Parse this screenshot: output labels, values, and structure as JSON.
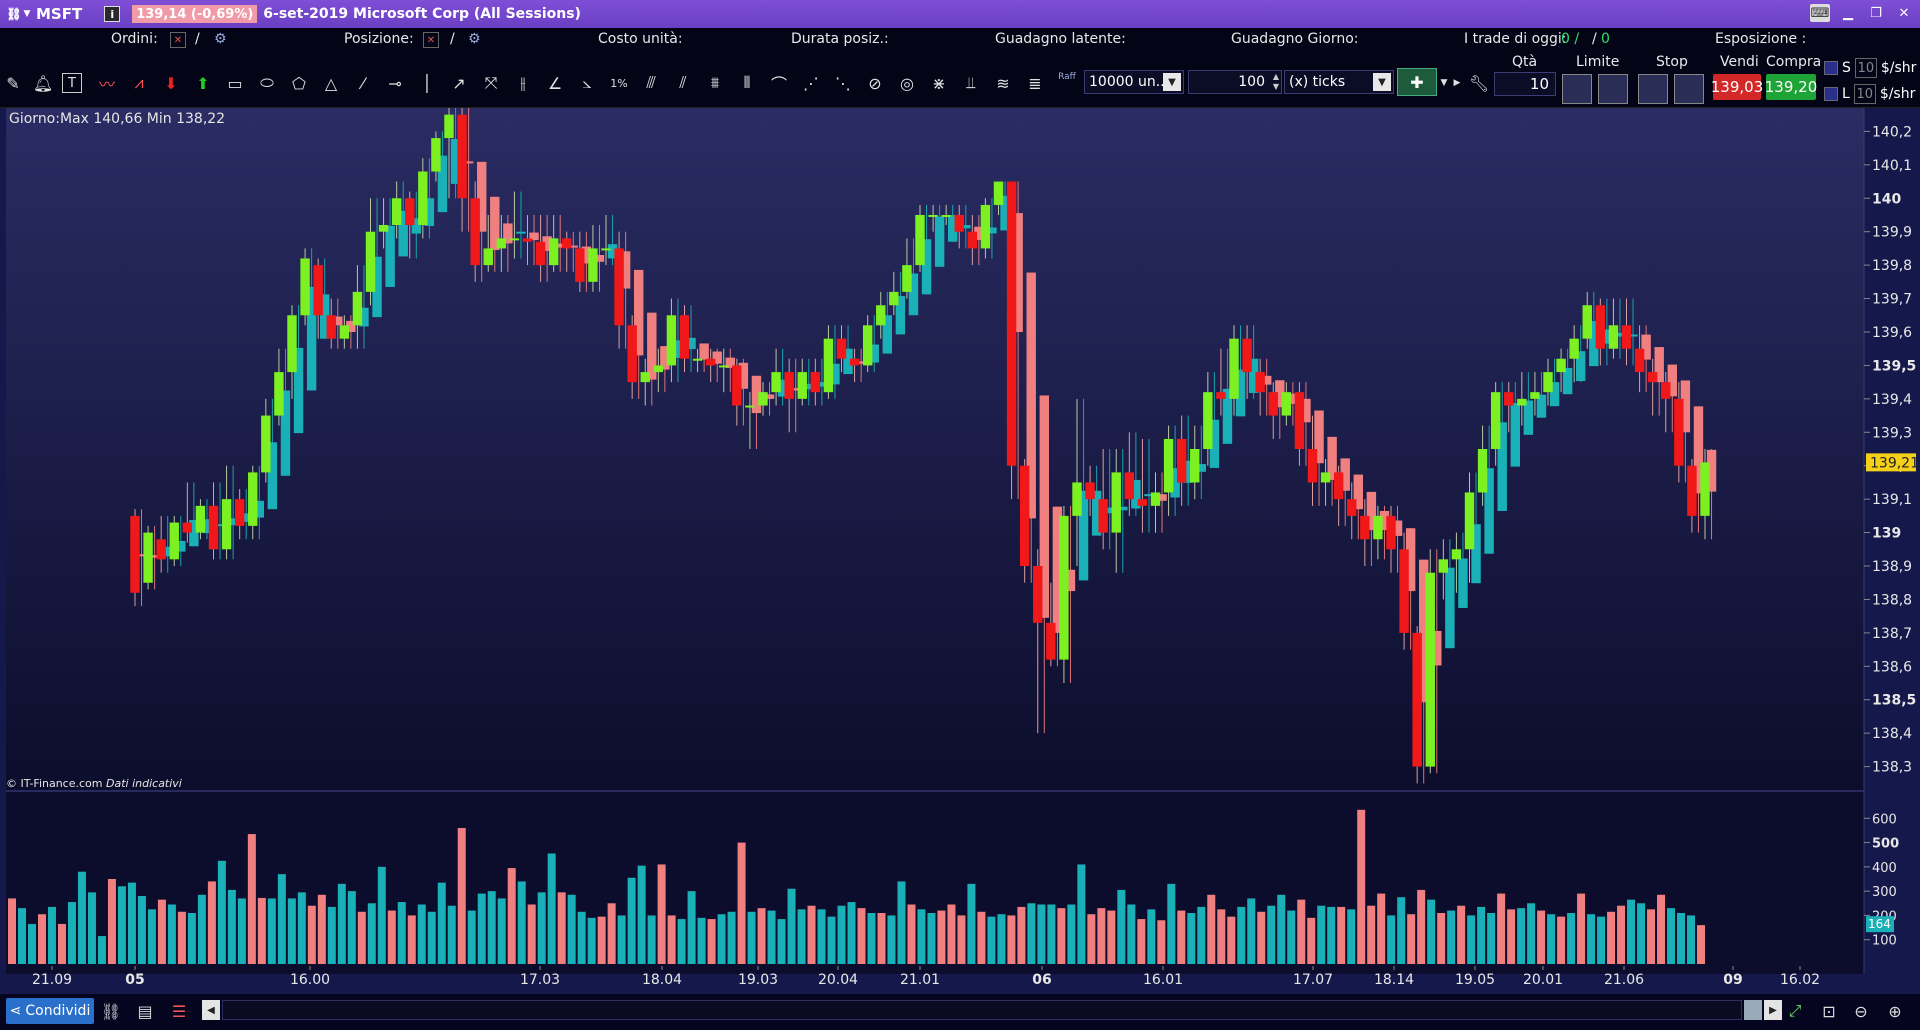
{
  "titlebar": {
    "symbol": "MSFT",
    "info": "i",
    "price_badge": "139,14 (-0,69%)",
    "title": "6-set-2019 Microsoft Corp (All Sessions)"
  },
  "status": {
    "orders_label": "Ordini:",
    "orders_sep": "/",
    "position_label": "Posizione:",
    "position_sep": "/",
    "unit_cost_label": "Costo unità:",
    "duration_label": "Durata posiz.:",
    "unrealized_label": "Guadagno latente:",
    "day_gain_label": "Guadagno Giorno:",
    "trades_label": "I trade di oggi:",
    "trades_a": "0 /",
    "trades_sep": "/",
    "trades_b": "0",
    "exposure_label": "Esposizione :"
  },
  "toolbar": {
    "qty_combo": "10000 un...",
    "ticks_value": "100",
    "ticks_unit": "(x) ticks",
    "raff_label": "Raff",
    "pct_label": "1%"
  },
  "trade": {
    "qty_label": "Qtà",
    "qty_value": "10",
    "limit_label": "Limite",
    "stop_label": "Stop",
    "sell_label": "Vendi",
    "buy_label": "Compra",
    "sell_price": "139,03",
    "buy_price": "139,20",
    "s_label": "S",
    "l_label": "L",
    "s_qty": "10",
    "l_qty": "10",
    "unit1": "$/shr",
    "unit2": "$/shr"
  },
  "chart": {
    "info": "Giorno:Max 140,66 Min 138,22",
    "copyright": "© IT-Finance.com",
    "copyright_note": "Dati indicativi",
    "last_price": "139,21",
    "colors": {
      "bull": "#7cf020",
      "bear": "#f01818",
      "ha_bull": "#1ab0b8",
      "ha_bear": "#f08080",
      "bg_top": "#2a2c63",
      "bg_bottom": "#0c0d2c"
    }
  },
  "chart_data": {
    "type": "candlestick",
    "price_axis": [
      "140,2",
      "140,1",
      "140",
      "139,9",
      "139,8",
      "139,7",
      "139,6",
      "139,5",
      "139,4",
      "139,3",
      "139,2",
      "139,1",
      "139",
      "138,9",
      "138,8",
      "138,7",
      "138,6",
      "138,5",
      "138,4",
      "138,3"
    ],
    "price_axis_bold": [
      "140",
      "139,5",
      "139",
      "138,5"
    ],
    "ylim": [
      138.23,
      140.27
    ],
    "volume_axis": [
      "600",
      "500",
      "400",
      "300",
      "200",
      "100"
    ],
    "volume_axis_bold": [
      "500"
    ],
    "volume_badge": "164",
    "volume_ylim": [
      0,
      700
    ],
    "time_axis": [
      "21.09",
      "05",
      "16.00",
      "17.03",
      "18.04",
      "19.03",
      "20.04",
      "21.01",
      "06",
      "16.01",
      "17.07",
      "18.14",
      "19.05",
      "20.01",
      "21.06",
      "09",
      "16.02"
    ],
    "time_axis_bold": [
      "05",
      "06",
      "09"
    ],
    "candles": [
      [
        139.05,
        138.82,
        138.78,
        139.07
      ],
      [
        138.85,
        139.0,
        138.83,
        139.02
      ],
      [
        138.98,
        138.92,
        138.88,
        139.05
      ],
      [
        138.92,
        139.03,
        138.9,
        139.05
      ],
      [
        139.03,
        139.0,
        138.97,
        139.15
      ],
      [
        139.0,
        139.08,
        138.98,
        139.1
      ],
      [
        139.08,
        138.95,
        138.92,
        139.15
      ],
      [
        138.95,
        139.1,
        138.92,
        139.2
      ],
      [
        139.1,
        139.02,
        138.98,
        139.13
      ],
      [
        139.02,
        139.18,
        138.98,
        139.2
      ],
      [
        139.18,
        139.35,
        139.15,
        139.4
      ],
      [
        139.35,
        139.48,
        139.32,
        139.55
      ],
      [
        139.48,
        139.65,
        139.4,
        139.68
      ],
      [
        139.65,
        139.82,
        139.62,
        139.85
      ],
      [
        139.8,
        139.65,
        139.58,
        139.82
      ],
      [
        139.65,
        139.58,
        139.55,
        139.7
      ],
      [
        139.58,
        139.62,
        139.55,
        139.65
      ],
      [
        139.62,
        139.72,
        139.55,
        139.8
      ],
      [
        139.72,
        139.9,
        139.68,
        140.0
      ],
      [
        139.9,
        139.92,
        139.85,
        140.0
      ],
      [
        139.92,
        140.0,
        139.88,
        140.05
      ],
      [
        140.0,
        139.92,
        139.82,
        140.02
      ],
      [
        139.92,
        140.08,
        139.88,
        140.12
      ],
      [
        140.08,
        140.18,
        140.05,
        140.2
      ],
      [
        140.18,
        140.25,
        140.0,
        140.28
      ],
      [
        140.25,
        140.0,
        139.9,
        140.28
      ],
      [
        140.0,
        139.8,
        139.75,
        140.05
      ],
      [
        139.8,
        139.85,
        139.78,
        139.95
      ],
      [
        139.85,
        139.88,
        139.78,
        139.95
      ],
      [
        139.88,
        139.88,
        139.82,
        140.02
      ],
      [
        139.88,
        139.87,
        139.8,
        139.95
      ],
      [
        139.87,
        139.8,
        139.75,
        139.95
      ],
      [
        139.8,
        139.88,
        139.78,
        139.95
      ],
      [
        139.88,
        139.85,
        139.78,
        139.9
      ],
      [
        139.85,
        139.75,
        139.72,
        139.9
      ],
      [
        139.75,
        139.85,
        139.72,
        139.92
      ],
      [
        139.85,
        139.85,
        139.8,
        139.95
      ],
      [
        139.85,
        139.62,
        139.55,
        139.9
      ],
      [
        139.62,
        139.45,
        139.4,
        139.65
      ],
      [
        139.45,
        139.48,
        139.38,
        139.52
      ],
      [
        139.48,
        139.5,
        139.42,
        139.55
      ],
      [
        139.5,
        139.65,
        139.45,
        139.7
      ],
      [
        139.65,
        139.52,
        139.48,
        139.68
      ],
      [
        139.52,
        139.52,
        139.48,
        139.55
      ],
      [
        139.52,
        139.5,
        139.45,
        139.55
      ],
      [
        139.5,
        139.5,
        139.42,
        139.55
      ],
      [
        139.5,
        139.38,
        139.32,
        139.52
      ],
      [
        139.38,
        139.38,
        139.25,
        139.42
      ],
      [
        139.38,
        139.42,
        139.35,
        139.45
      ],
      [
        139.42,
        139.48,
        139.38,
        139.55
      ],
      [
        139.48,
        139.4,
        139.3,
        139.52
      ],
      [
        139.4,
        139.48,
        139.38,
        139.52
      ],
      [
        139.48,
        139.42,
        139.38,
        139.52
      ],
      [
        139.42,
        139.58,
        139.4,
        139.62
      ],
      [
        139.58,
        139.52,
        139.48,
        139.62
      ],
      [
        139.52,
        139.5,
        139.45,
        139.55
      ],
      [
        139.5,
        139.62,
        139.48,
        139.65
      ],
      [
        139.62,
        139.68,
        139.58,
        139.72
      ],
      [
        139.68,
        139.72,
        139.65,
        139.78
      ],
      [
        139.72,
        139.8,
        139.7,
        139.88
      ],
      [
        139.8,
        139.95,
        139.78,
        139.98
      ],
      [
        139.95,
        139.95,
        139.9,
        139.98
      ],
      [
        139.95,
        139.95,
        139.92,
        139.98
      ],
      [
        139.95,
        139.9,
        139.85,
        139.98
      ],
      [
        139.9,
        139.85,
        139.8,
        139.95
      ],
      [
        139.85,
        139.98,
        139.82,
        140.0
      ],
      [
        139.98,
        140.05,
        139.95,
        140.05
      ],
      [
        140.05,
        139.2,
        139.1,
        140.05
      ],
      [
        139.2,
        138.9,
        138.85,
        139.22
      ],
      [
        138.9,
        138.73,
        138.4,
        138.95
      ],
      [
        138.73,
        138.62,
        138.6,
        138.85
      ],
      [
        138.62,
        139.05,
        138.55,
        139.08
      ],
      [
        139.05,
        139.15,
        138.9,
        139.4
      ],
      [
        139.15,
        139.1,
        139.05,
        139.2
      ],
      [
        139.1,
        139.0,
        138.95,
        139.25
      ],
      [
        139.0,
        139.18,
        138.88,
        139.25
      ],
      [
        139.18,
        139.1,
        139.05,
        139.3
      ],
      [
        139.1,
        139.08,
        139.0,
        139.28
      ],
      [
        139.08,
        139.12,
        139.0,
        139.18
      ],
      [
        139.12,
        139.28,
        139.05,
        139.32
      ],
      [
        139.28,
        139.15,
        139.08,
        139.35
      ],
      [
        139.15,
        139.25,
        139.1,
        139.32
      ],
      [
        139.25,
        139.42,
        139.2,
        139.48
      ],
      [
        139.42,
        139.4,
        139.35,
        139.55
      ],
      [
        139.4,
        139.58,
        139.35,
        139.62
      ],
      [
        139.58,
        139.48,
        139.4,
        139.62
      ],
      [
        139.48,
        139.42,
        139.35,
        139.52
      ],
      [
        139.42,
        139.35,
        139.28,
        139.45
      ],
      [
        139.35,
        139.42,
        139.32,
        139.45
      ],
      [
        139.42,
        139.25,
        139.2,
        139.45
      ],
      [
        139.25,
        139.15,
        139.08,
        139.35
      ],
      [
        139.15,
        139.18,
        139.08,
        139.22
      ],
      [
        139.18,
        139.1,
        139.02,
        139.2
      ],
      [
        139.1,
        139.05,
        138.98,
        139.15
      ],
      [
        139.05,
        138.98,
        138.9,
        139.1
      ],
      [
        138.98,
        139.05,
        138.92,
        139.08
      ],
      [
        139.05,
        138.95,
        138.88,
        139.08
      ],
      [
        138.95,
        138.7,
        138.65,
        139.0
      ],
      [
        138.7,
        138.3,
        138.25,
        138.72
      ],
      [
        138.3,
        138.88,
        138.28,
        138.95
      ],
      [
        138.88,
        138.92,
        138.8,
        138.98
      ],
      [
        138.92,
        138.95,
        138.82,
        139.0
      ],
      [
        138.95,
        139.12,
        138.85,
        139.18
      ],
      [
        139.12,
        139.25,
        139.08,
        139.32
      ],
      [
        139.25,
        139.42,
        139.2,
        139.45
      ],
      [
        139.42,
        139.38,
        139.3,
        139.45
      ],
      [
        139.38,
        139.4,
        139.32,
        139.48
      ],
      [
        139.4,
        139.42,
        139.35,
        139.48
      ],
      [
        139.42,
        139.48,
        139.38,
        139.52
      ],
      [
        139.48,
        139.52,
        139.42,
        139.55
      ],
      [
        139.52,
        139.58,
        139.45,
        139.62
      ],
      [
        139.58,
        139.68,
        139.55,
        139.72
      ],
      [
        139.68,
        139.55,
        139.5,
        139.7
      ],
      [
        139.55,
        139.62,
        139.52,
        139.7
      ],
      [
        139.62,
        139.55,
        139.5,
        139.7
      ],
      [
        139.55,
        139.48,
        139.42,
        139.62
      ],
      [
        139.48,
        139.45,
        139.35,
        139.52
      ],
      [
        139.45,
        139.4,
        139.3,
        139.48
      ],
      [
        139.4,
        139.2,
        139.15,
        139.45
      ],
      [
        139.2,
        139.05,
        139.0,
        139.22
      ],
      [
        139.05,
        139.21,
        138.98,
        139.25
      ]
    ],
    "volumes": [
      270,
      230,
      165,
      205,
      235,
      165,
      255,
      380,
      295,
      115,
      350,
      320,
      335,
      280,
      225,
      265,
      245,
      215,
      210,
      285,
      340,
      425,
      305,
      270,
      535,
      272,
      270,
      370,
      270,
      295,
      240,
      285,
      235,
      330,
      300,
      215,
      250,
      400,
      220,
      255,
      200,
      245,
      215,
      335,
      240,
      560,
      220,
      290,
      300,
      270,
      395,
      340,
      245,
      295,
      455,
      295,
      285,
      215,
      190,
      195,
      250,
      200,
      355,
      405,
      200,
      410,
      200,
      185,
      300,
      190,
      185,
      205,
      215,
      500,
      215,
      230,
      220,
      185,
      310,
      225,
      240,
      225,
      195,
      240,
      255,
      230,
      210,
      210,
      200,
      340,
      245,
      225,
      210,
      220,
      245,
      200,
      330,
      215,
      195,
      205,
      200,
      235,
      250,
      245,
      245,
      230,
      245,
      410,
      205,
      230,
      220,
      305,
      245,
      185,
      225,
      180,
      330,
      220,
      210,
      235,
      285,
      225,
      195,
      235,
      270,
      215,
      240,
      285,
      220,
      265,
      190,
      240,
      235,
      235,
      225,
      635,
      240,
      290,
      200,
      275,
      205,
      305,
      265,
      210,
      220,
      240,
      200,
      235,
      210,
      290,
      225,
      230,
      250,
      220,
      205,
      195,
      210,
      290,
      205,
      195,
      215,
      240,
      265,
      250,
      225,
      285,
      230,
      210,
      200,
      160
    ]
  },
  "bottom": {
    "share_label": "Condividi"
  }
}
